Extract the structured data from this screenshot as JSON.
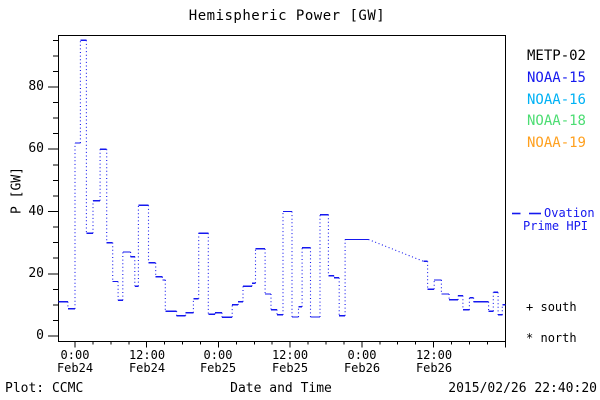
{
  "title": "Hemispheric Power [GW]",
  "axes": {
    "ylabel": "P [GW]",
    "xlabel": "Date and Time"
  },
  "footer": {
    "left": "Plot: CCMC",
    "timestamp": "2015/02/26 22:40:20"
  },
  "legend": {
    "satellites": [
      {
        "label": "METP-02",
        "color": "#000000"
      },
      {
        "label": "NOAA-15",
        "color": "#1518ef"
      },
      {
        "label": "NOAA-16",
        "color": "#00b2f5"
      },
      {
        "label": "NOAA-18",
        "color": "#4cdd73"
      },
      {
        "label": "NOAA-19",
        "color": "#ffa01e"
      }
    ],
    "model": {
      "line1": "Ovation",
      "line2": "Prime HPI",
      "color": "#1518ef",
      "symbol": "dashed-line"
    },
    "markers": [
      {
        "symbol": "+",
        "label": "south"
      },
      {
        "symbol": "*",
        "label": "north"
      }
    ]
  },
  "chart_data": {
    "type": "line",
    "title": "Hemispheric Power [GW]",
    "xlabel": "Date and Time",
    "ylabel": "P [GW]",
    "grid": false,
    "x_axis": {
      "unit": "hours since 2015-02-24 00:00",
      "range": [
        -2.85,
        72
      ],
      "major_tick_hours": 12,
      "minor_tick_hours": 3,
      "ticks": [
        {
          "t": 0,
          "time": "0:00",
          "date": "Feb24"
        },
        {
          "t": 12,
          "time": "12:00",
          "date": "Feb24"
        },
        {
          "t": 24,
          "time": "0:00",
          "date": "Feb25"
        },
        {
          "t": 36,
          "time": "12:00",
          "date": "Feb25"
        },
        {
          "t": 48,
          "time": "0:00",
          "date": "Feb26"
        },
        {
          "t": 60,
          "time": "12:00",
          "date": "Feb26"
        },
        {
          "t": 72,
          "time": "",
          "date": ""
        }
      ]
    },
    "y_axis": {
      "range": [
        -1.6,
        96.7
      ],
      "major_ticks": [
        0,
        20,
        40,
        60,
        80
      ],
      "minor_tick_step": 5
    },
    "series": [
      {
        "name": "Ovation Prime HPI",
        "color": "#1518ef",
        "line_style": "step-dotted",
        "points_format": "[hours_since_Feb24_0000, power_GW, optional 'linear' connector flag]",
        "points": [
          [
            -2.8,
            11
          ],
          [
            -1.2,
            8.7
          ],
          [
            0.0,
            62
          ],
          [
            0.9,
            95
          ],
          [
            1.9,
            33
          ],
          [
            3.0,
            43.5
          ],
          [
            4.2,
            60
          ],
          [
            5.3,
            30
          ],
          [
            6.3,
            17.5
          ],
          [
            7.2,
            11.5
          ],
          [
            8.0,
            27
          ],
          [
            9.3,
            25.5
          ],
          [
            10.0,
            16
          ],
          [
            10.6,
            42
          ],
          [
            12.3,
            23.5
          ],
          [
            13.5,
            19
          ],
          [
            14.6,
            18
          ],
          [
            15.1,
            8
          ],
          [
            17.0,
            6.5
          ],
          [
            18.5,
            7.5
          ],
          [
            19.8,
            12
          ],
          [
            20.7,
            33
          ],
          [
            22.3,
            7
          ],
          [
            23.4,
            7.5
          ],
          [
            24.6,
            6
          ],
          [
            26.3,
            10
          ],
          [
            27.3,
            11
          ],
          [
            28.1,
            16
          ],
          [
            29.6,
            17
          ],
          [
            30.2,
            28
          ],
          [
            31.8,
            13.5
          ],
          [
            32.8,
            8.5
          ],
          [
            33.8,
            6.8
          ],
          [
            34.8,
            40
          ],
          [
            36.3,
            6.1
          ],
          [
            37.4,
            9.4
          ],
          [
            38.0,
            28.4
          ],
          [
            39.4,
            6.1
          ],
          [
            41.0,
            39
          ],
          [
            42.4,
            19.4
          ],
          [
            43.3,
            18.7
          ],
          [
            44.2,
            6.5
          ],
          [
            45.2,
            31
          ],
          [
            49.1,
            31,
            "linear"
          ],
          [
            58.3,
            24
          ],
          [
            59.0,
            15
          ],
          [
            60.1,
            18
          ],
          [
            61.3,
            13.5
          ],
          [
            62.6,
            11.6
          ],
          [
            64.1,
            13
          ],
          [
            64.9,
            8.4
          ],
          [
            66.0,
            12.3
          ],
          [
            66.7,
            11
          ],
          [
            69.2,
            8
          ],
          [
            70.0,
            14
          ],
          [
            70.8,
            6.8
          ],
          [
            71.5,
            10
          ],
          [
            72.0,
            10
          ]
        ]
      }
    ]
  }
}
